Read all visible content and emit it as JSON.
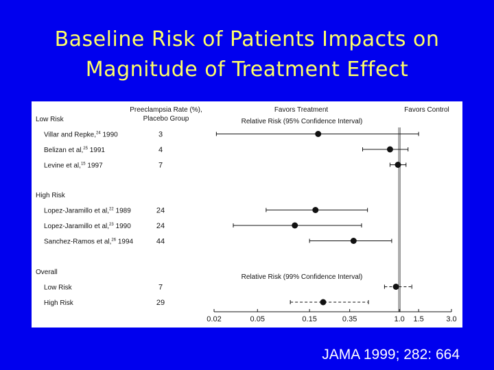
{
  "slide": {
    "title_line1": "Baseline Risk of Patients Impacts on",
    "title_line2": "Magnitude of Treatment Effect",
    "citation": "JAMA 1999; 282: 664",
    "colors": {
      "background": "#0000ee",
      "title": "#ffff66",
      "citation": "#ffffff",
      "panel": "#ffffff"
    }
  },
  "chart_data": {
    "type": "forest",
    "header_rate_line1": "Preeclampsia Rate (%),",
    "header_rate_line2": "Placebo Group",
    "favors_treatment": "Favors Treatment",
    "favors_control": "Favors Control",
    "ci_label_95": "Relative Risk (95% Confidence Interval)",
    "ci_label_99": "Relative Risk (99% Confidence Interval)",
    "x_scale": "log",
    "xlim": [
      0.02,
      3.0
    ],
    "xticks": [
      0.02,
      0.05,
      0.15,
      0.35,
      1.0,
      1.5,
      3.0
    ],
    "xtick_labels": [
      "0.02",
      "0.05",
      "0.15",
      "0.35",
      "1.0",
      "1.5",
      "3.0"
    ],
    "reference_line": 1.0,
    "groups": [
      {
        "label": "Low Risk",
        "studies": [
          {
            "name": "Villar and Repke,",
            "ref": "24",
            "year": "1990",
            "rate": "3",
            "rr": 0.18,
            "lo": 0.021,
            "hi": 1.5,
            "dashed": false
          },
          {
            "name": "Belizan et al,",
            "ref": "25",
            "year": "1991",
            "rate": "4",
            "rr": 0.82,
            "lo": 0.46,
            "hi": 1.2,
            "dashed": false
          },
          {
            "name": "Levine et al,",
            "ref": "15",
            "year": "1997",
            "rate": "7",
            "rr": 0.97,
            "lo": 0.82,
            "hi": 1.15,
            "dashed": false
          }
        ]
      },
      {
        "label": "High Risk",
        "studies": [
          {
            "name": "Lopez-Jaramillo et al,",
            "ref": "22",
            "year": "1989",
            "rate": "24",
            "rr": 0.17,
            "lo": 0.06,
            "hi": 0.51,
            "dashed": false
          },
          {
            "name": "Lopez-Jaramillo et al,",
            "ref": "23",
            "year": "1990",
            "rate": "24",
            "rr": 0.11,
            "lo": 0.03,
            "hi": 0.45,
            "dashed": false
          },
          {
            "name": "Sanchez-Ramos et al,",
            "ref": "26",
            "year": "1994",
            "rate": "44",
            "rr": 0.38,
            "lo": 0.15,
            "hi": 0.85,
            "dashed": false
          }
        ]
      },
      {
        "label": "Overall",
        "studies": [
          {
            "name": "Low Risk",
            "ref": "",
            "year": "",
            "rate": "7",
            "rr": 0.93,
            "lo": 0.73,
            "hi": 1.3,
            "dashed": true
          },
          {
            "name": "High Risk",
            "ref": "",
            "year": "",
            "rate": "29",
            "rr": 0.2,
            "lo": 0.1,
            "hi": 0.52,
            "dashed": true
          }
        ]
      }
    ]
  }
}
